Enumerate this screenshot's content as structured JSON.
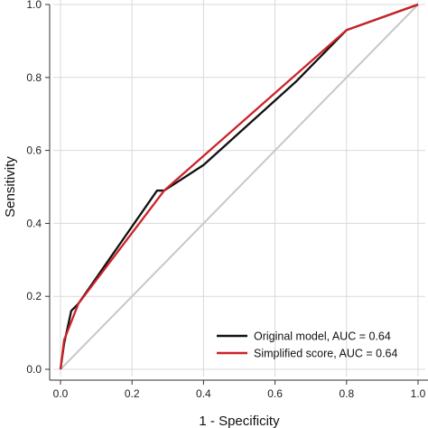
{
  "chart_data": {
    "type": "line",
    "title": "",
    "xlabel": "1 - Specificity",
    "ylabel": "Sensitivity",
    "xlim": [
      0,
      1
    ],
    "ylim": [
      0,
      1
    ],
    "x_ticks": [
      "0.0",
      "0.2",
      "0.4",
      "0.6",
      "0.8",
      "1.0"
    ],
    "y_ticks": [
      "0.0",
      "0.2",
      "0.4",
      "0.6",
      "0.8",
      "1.0"
    ],
    "grid": true,
    "legend_position": "bottom-right",
    "reference_line": {
      "x": [
        0,
        1
      ],
      "y": [
        0,
        1
      ],
      "color": "#c8c8c8"
    },
    "series": [
      {
        "name": "Original model, AUC = 0.64",
        "color": "#111111",
        "x": [
          0,
          0.01,
          0.03,
          0.05,
          0.27,
          0.29,
          0.4,
          0.66,
          0.8,
          1.0
        ],
        "y": [
          0,
          0.07,
          0.16,
          0.18,
          0.49,
          0.49,
          0.56,
          0.79,
          0.93,
          1.0
        ]
      },
      {
        "name": "Simplified score, AUC = 0.64",
        "color": "#cc2229",
        "x": [
          0,
          0.01,
          0.05,
          0.29,
          0.8,
          1.0
        ],
        "y": [
          0,
          0.08,
          0.18,
          0.49,
          0.93,
          1.0
        ]
      }
    ]
  }
}
